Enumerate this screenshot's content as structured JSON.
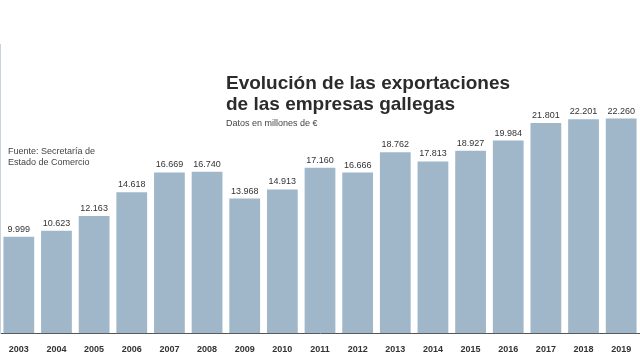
{
  "chart_data": {
    "type": "bar",
    "title": "Evolución de las exportaciones de las empresas gallegas",
    "subtitle": "Datos en millones de €",
    "source": "Fuente: Secretaría de Estado de Comercio",
    "categories": [
      "2003",
      "2004",
      "2005",
      "2006",
      "2007",
      "2008",
      "2009",
      "2010",
      "2011",
      "2012",
      "2013",
      "2014",
      "2015",
      "2016",
      "2017",
      "2018",
      "2019"
    ],
    "values": [
      9999,
      10623,
      12163,
      14618,
      16669,
      16740,
      13968,
      14913,
      17160,
      16666,
      18762,
      17813,
      18927,
      19984,
      21801,
      22201,
      22260
    ],
    "value_labels": [
      "9.999",
      "10.623",
      "12.163",
      "14.618",
      "16.669",
      "16.740",
      "13.968",
      "14.913",
      "17.160",
      "16.666",
      "18.762",
      "17.813",
      "18.927",
      "19.984",
      "21.801",
      "22.201",
      "22.260"
    ],
    "color": "#9fb7c9",
    "ylim": [
      0,
      30000
    ],
    "grid": false,
    "data_labels": true,
    "tick_labels": "x"
  }
}
